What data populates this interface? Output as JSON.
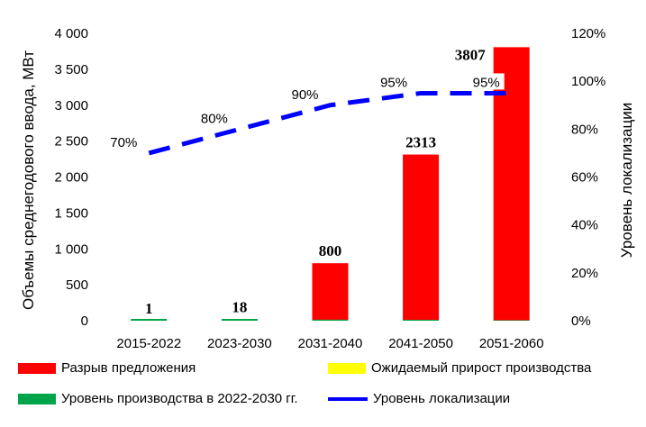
{
  "chart_data": {
    "type": "bar",
    "categories": [
      "2015-2022",
      "2023-2030",
      "2031-2040",
      "2041-2050",
      "2051-2060"
    ],
    "ylabel": "Объемы среднегодового ввода, МВт",
    "y2label": "Уровень локализации",
    "ylim": [
      0,
      4000
    ],
    "yticks": [
      "0",
      "500",
      "1 000",
      "1 500",
      "2 000",
      "2 500",
      "3 000",
      "3 500",
      "4 000"
    ],
    "y2lim": [
      0,
      120
    ],
    "y2ticks": [
      "0%",
      "20%",
      "40%",
      "60%",
      "80%",
      "100%",
      "120%"
    ],
    "grid": false,
    "legend_position": "bottom",
    "series": [
      {
        "name": "Разрыв предложения",
        "kind": "bar",
        "color": "#ff0000",
        "values": [
          0,
          0,
          785,
          2300,
          3800
        ]
      },
      {
        "name": "Ожидаемый прирост производства",
        "kind": "bar",
        "color": "#ffff00",
        "values": [
          0,
          0,
          0,
          0,
          0
        ]
      },
      {
        "name": "Уровень производства в 2022-2030  гг.",
        "kind": "bar",
        "color": "#00a44a",
        "values": [
          1,
          18,
          15,
          13,
          7
        ]
      },
      {
        "name": "Уровень локализации",
        "kind": "line",
        "axis": "right",
        "color": "#0000ff",
        "values": [
          70,
          80,
          90,
          95,
          95
        ],
        "point_labels": [
          "70%",
          "80%",
          "90%",
          "95%",
          "95%"
        ]
      }
    ],
    "bar_totals": [
      "1",
      "18",
      "800",
      "2313",
      "3807"
    ]
  }
}
